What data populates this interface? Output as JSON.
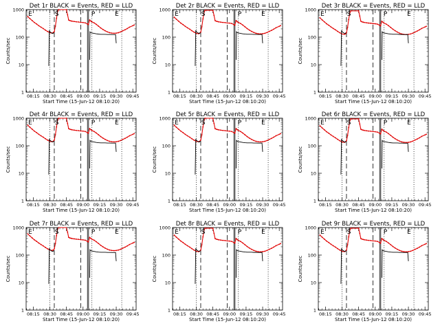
{
  "chart_data": [
    {
      "type": "line",
      "title": "Det 1r BLACK = Events, RED = LLD",
      "xlabel": "Start Time (15-Jun-12 08:10:20)",
      "ylabel": "Counts/sec",
      "yscale": "log",
      "ylim": [
        1,
        1000
      ],
      "series": [
        {
          "name": "BLACK = Events",
          "color": "#000000",
          "lld_offset": 2.7
        },
        {
          "name": "RED = LLD",
          "color": "#e00000",
          "v_scale": 1.0
        }
      ],
      "markers": [
        "E",
        "S",
        "P",
        "E"
      ]
    },
    {
      "type": "line",
      "title": "Det 2r BLACK = Events, RED = LLD",
      "xlabel": "Start Time (15-Jun-12 08:10:20)",
      "ylabel": "Counts/sec",
      "yscale": "log",
      "ylim": [
        1,
        1000
      ],
      "series": [
        {
          "name": "BLACK = Events",
          "color": "#000000",
          "lld_offset": 2.9
        },
        {
          "name": "RED = LLD",
          "color": "#e00000",
          "v_scale": 0.95
        }
      ],
      "markers": [
        "E",
        "S",
        "P",
        "E"
      ]
    },
    {
      "type": "line",
      "title": "Det 3r BLACK = Events, RED = LLD",
      "xlabel": "Start Time (15-Jun-12 08:10:20)",
      "ylabel": "Counts/sec",
      "yscale": "log",
      "ylim": [
        1,
        1000
      ],
      "series": [
        {
          "name": "BLACK = Events",
          "color": "#000000",
          "lld_offset": 2.8
        },
        {
          "name": "RED = LLD",
          "color": "#e00000",
          "v_scale": 0.9
        }
      ],
      "markers": [
        "E",
        "S",
        "P",
        "E"
      ]
    },
    {
      "type": "line",
      "title": "Det 4r BLACK = Events, RED = LLD",
      "xlabel": "Start Time (15-Jun-12 08:10:20)",
      "ylabel": "Counts/sec",
      "yscale": "log",
      "ylim": [
        1,
        1000
      ],
      "series": [
        {
          "name": "BLACK = Events",
          "color": "#000000",
          "lld_offset": 3.0
        },
        {
          "name": "RED = LLD",
          "color": "#e00000",
          "v_scale": 1.0
        }
      ],
      "markers": [
        "E",
        "S",
        "P",
        "E"
      ]
    },
    {
      "type": "line",
      "title": "Det 5r BLACK = Events, RED = LLD",
      "xlabel": "Start Time (15-Jun-12 08:10:20)",
      "ylabel": "Counts/sec",
      "yscale": "log",
      "ylim": [
        1,
        1000
      ],
      "series": [
        {
          "name": "BLACK = Events",
          "color": "#000000",
          "lld_offset": 2.9
        },
        {
          "name": "RED = LLD",
          "color": "#e00000",
          "v_scale": 1.0
        }
      ],
      "markers": [
        "E",
        "S",
        "P",
        "E"
      ]
    },
    {
      "type": "line",
      "title": "Det 6r BLACK = Events, RED = LLD",
      "xlabel": "Start Time (15-Jun-12 08:10:20)",
      "ylabel": "Counts/sec",
      "yscale": "log",
      "ylim": [
        1,
        1000
      ],
      "series": [
        {
          "name": "BLACK = Events",
          "color": "#000000",
          "lld_offset": 2.7
        },
        {
          "name": "RED = LLD",
          "color": "#e00000",
          "v_scale": 0.95
        }
      ],
      "markers": [
        "E",
        "S",
        "P",
        "E"
      ]
    },
    {
      "type": "line",
      "title": "Det 7r BLACK = Events, RED = LLD",
      "xlabel": "Start Time (15-Jun-12 08:10:20)",
      "ylabel": "Counts/sec",
      "yscale": "log",
      "ylim": [
        1,
        1000
      ],
      "series": [
        {
          "name": "BLACK = Events",
          "color": "#000000",
          "lld_offset": 2.6
        },
        {
          "name": "RED = LLD",
          "color": "#e00000",
          "v_scale": 1.05
        }
      ],
      "markers": [
        "E",
        "S",
        "P",
        "E"
      ]
    },
    {
      "type": "line",
      "title": "Det 8r BLACK = Events, RED = LLD",
      "xlabel": "Start Time (15-Jun-12 08:10:20)",
      "ylabel": "Counts/sec",
      "yscale": "log",
      "ylim": [
        1,
        1000
      ],
      "series": [
        {
          "name": "BLACK = Events",
          "color": "#000000",
          "lld_offset": 2.8
        },
        {
          "name": "RED = LLD",
          "color": "#e00000",
          "v_scale": 0.95
        }
      ],
      "markers": [
        "E",
        "S",
        "P",
        "E"
      ]
    },
    {
      "type": "line",
      "title": "Det 9r BLACK = Events, RED = LLD",
      "xlabel": "Start Time (15-Jun-12 08:10:20)",
      "ylabel": "Counts/sec",
      "yscale": "log",
      "ylim": [
        1,
        1000
      ],
      "series": [
        {
          "name": "BLACK = Events",
          "color": "#000000",
          "lld_offset": 2.6
        },
        {
          "name": "RED = LLD",
          "color": "#e00000",
          "v_scale": 0.95
        }
      ],
      "markers": [
        "E",
        "S",
        "P",
        "E"
      ]
    }
  ],
  "shared": {
    "xticks": [
      "08:15",
      "08:30",
      "08:45",
      "09:00",
      "09:15",
      "09:30",
      "09:45"
    ],
    "yticks": [
      "1",
      "10",
      "100",
      "1000"
    ],
    "red_curve_cps": [
      [
        8.1667,
        560
      ],
      [
        8.2,
        470
      ],
      [
        8.2333,
        400
      ],
      [
        8.2667,
        340
      ],
      [
        8.3,
        300
      ],
      [
        8.3333,
        260
      ],
      [
        8.3667,
        230
      ],
      [
        8.4,
        205
      ],
      [
        8.4333,
        180
      ],
      [
        8.4667,
        160
      ],
      [
        8.5,
        145
      ],
      [
        8.5333,
        140
      ],
      [
        8.55,
        145
      ],
      [
        8.5667,
        160
      ],
      [
        8.5833,
        250
      ],
      [
        8.6,
        480
      ],
      [
        8.6167,
        850
      ],
      [
        8.6333,
        1000
      ],
      [
        8.75,
        1000
      ],
      [
        8.7667,
        650
      ],
      [
        8.7833,
        420
      ],
      [
        8.8,
        400
      ],
      [
        8.8167,
        390
      ],
      [
        8.8333,
        380
      ],
      [
        8.8667,
        370
      ],
      [
        8.9,
        360
      ],
      [
        8.9333,
        355
      ],
      [
        8.9667,
        345
      ],
      [
        9.0,
        340
      ],
      [
        9.0333,
        330
      ],
      [
        9.0667,
        300
      ],
      [
        9.08,
        285
      ],
      [
        9.1,
        420
      ],
      [
        9.12,
        380
      ],
      [
        9.1333,
        360
      ],
      [
        9.1667,
        330
      ],
      [
        9.2,
        290
      ],
      [
        9.2333,
        250
      ],
      [
        9.2667,
        215
      ],
      [
        9.3,
        190
      ],
      [
        9.3333,
        170
      ],
      [
        9.3667,
        155
      ],
      [
        9.4,
        145
      ],
      [
        9.4333,
        140
      ],
      [
        9.4667,
        138
      ],
      [
        9.5,
        140
      ],
      [
        9.5333,
        145
      ],
      [
        9.5667,
        155
      ],
      [
        9.6,
        170
      ],
      [
        9.6333,
        185
      ],
      [
        9.6667,
        205
      ],
      [
        9.7,
        230
      ],
      [
        9.75,
        260
      ],
      [
        9.77,
        275
      ]
    ],
    "black_segments_cps": [
      [
        [
          8.4833,
          9
        ],
        [
          8.4917,
          180
        ],
        [
          8.5,
          160
        ],
        [
          8.5167,
          150
        ],
        [
          8.5333,
          140
        ],
        [
          8.55,
          140
        ],
        [
          8.56,
          150
        ]
      ],
      [
        [
          8.6083,
          600
        ],
        [
          8.6167,
          1000
        ]
      ],
      [
        [
          9.1,
          15
        ],
        [
          9.105,
          160
        ],
        [
          9.1167,
          150
        ],
        [
          9.1333,
          145
        ],
        [
          9.1667,
          140
        ],
        [
          9.2,
          135
        ],
        [
          9.2333,
          132
        ],
        [
          9.2667,
          130
        ],
        [
          9.3,
          130
        ],
        [
          9.3333,
          130
        ],
        [
          9.3667,
          128
        ],
        [
          9.4,
          128
        ],
        [
          9.4333,
          127
        ],
        [
          9.4667,
          127
        ],
        [
          9.49,
          128
        ],
        [
          9.5,
          60
        ]
      ]
    ],
    "vlines": [
      {
        "x": 8.5,
        "style": "dotted"
      },
      {
        "x": 8.5667,
        "style": "dashed"
      },
      {
        "x": 8.9667,
        "style": "dashed"
      },
      {
        "x": 9.0667,
        "style": "solid"
      },
      {
        "x": 9.0833,
        "style": "solid"
      },
      {
        "x": 9.1333,
        "style": "dotted"
      },
      {
        "x": 9.5833,
        "style": "dotted"
      }
    ],
    "marker_x": [
      8.175,
      8.575,
      9.125,
      9.48
    ]
  }
}
